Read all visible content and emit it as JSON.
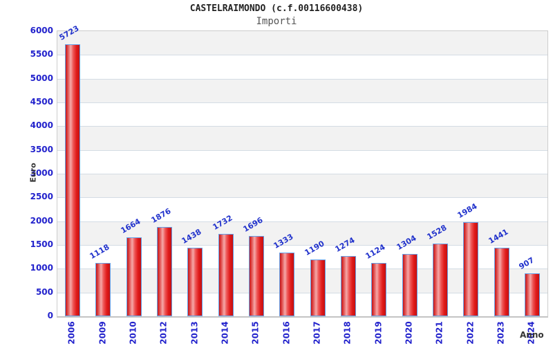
{
  "header": {
    "title": "CASTELRAIMONDO (c.f.00116600438)",
    "subtitle": "Importi"
  },
  "chart_data": {
    "type": "bar",
    "title": "CASTELRAIMONDO (c.f.00116600438)",
    "subtitle": "Importi",
    "xlabel": "Anno",
    "ylabel": "Euro",
    "categories": [
      "2006",
      "2009",
      "2010",
      "2012",
      "2013",
      "2014",
      "2015",
      "2016",
      "2017",
      "2018",
      "2019",
      "2020",
      "2021",
      "2022",
      "2023",
      "2024"
    ],
    "values": [
      5723,
      1118,
      1664,
      1876,
      1438,
      1732,
      1696,
      1333,
      1190,
      1274,
      1124,
      1304,
      1528,
      1984,
      1441,
      907
    ],
    "ylim": [
      0,
      6000
    ],
    "ytick_step": 500,
    "yticks": [
      0,
      500,
      1000,
      1500,
      2000,
      2500,
      3000,
      3500,
      4000,
      4500,
      5000,
      5500,
      6000
    ],
    "grid": "horizontal alternating bands, gridline every 500",
    "legend": "none",
    "bar_labels_rotation_deg": -30,
    "x_labels_rotation_deg": -90,
    "colors": {
      "bar_border": "#64a0e8",
      "bar_gradient": [
        "#c81414",
        "#e05050",
        "#f5a8a8",
        "#ee5555",
        "#e01a1a",
        "#c41010"
      ],
      "tick_label": "#2222cc",
      "value_label": "#2233cc",
      "band_gray": "#f2f2f2",
      "band_white": "#ffffff",
      "gridline": "#d4dce4",
      "plot_border": "#cccccc",
      "axis_title": "#333333",
      "title": "#222222",
      "subtitle": "#555555"
    }
  }
}
